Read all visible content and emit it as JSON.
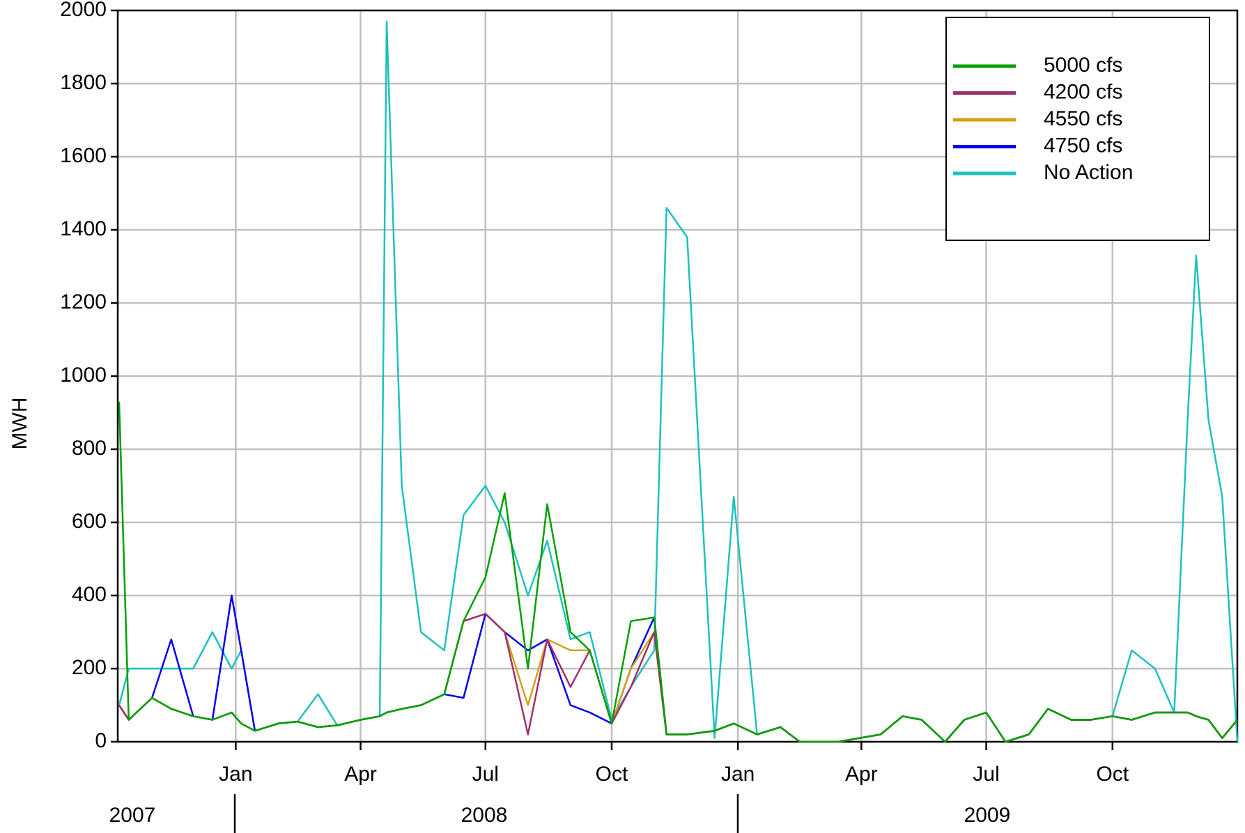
{
  "chart_data": {
    "type": "line",
    "y_label": "MWH",
    "x": [
      "2007-10-08",
      "2007-10-15",
      "2007-11-01",
      "2007-11-15",
      "2007-12-01",
      "2007-12-15",
      "2007-12-29",
      "2008-01-05",
      "2008-01-15",
      "2008-02-01",
      "2008-02-15",
      "2008-03-01",
      "2008-03-15",
      "2008-04-01",
      "2008-04-15",
      "2008-04-20",
      "2008-05-01",
      "2008-05-15",
      "2008-06-01",
      "2008-06-15",
      "2008-07-01",
      "2008-07-15",
      "2008-08-01",
      "2008-08-15",
      "2008-09-01",
      "2008-09-15",
      "2008-10-01",
      "2008-10-15",
      "2008-11-01",
      "2008-11-10",
      "2008-11-25",
      "2008-12-15",
      "2008-12-29",
      "2009-01-15",
      "2009-02-01",
      "2009-02-15",
      "2009-03-15",
      "2009-04-15",
      "2009-05-01",
      "2009-05-15",
      "2009-06-01",
      "2009-06-15",
      "2009-07-01",
      "2009-07-15",
      "2009-08-01",
      "2009-08-15",
      "2009-09-01",
      "2009-09-15",
      "2009-10-01",
      "2009-10-15",
      "2009-11-01",
      "2009-11-15",
      "2009-11-25",
      "2009-12-01",
      "2009-12-10",
      "2009-12-20",
      "2009-12-31"
    ],
    "series": [
      {
        "name": "No Action",
        "color": "#20c0c0",
        "values": [
          100,
          200,
          200,
          200,
          200,
          300,
          200,
          250,
          30,
          50,
          55,
          130,
          45,
          60,
          70,
          1970,
          700,
          300,
          250,
          620,
          700,
          600,
          400,
          550,
          280,
          300,
          60,
          150,
          250,
          1460,
          1380,
          10,
          670,
          20,
          40,
          0,
          0,
          20,
          70,
          60,
          0,
          60,
          80,
          0,
          20,
          90,
          60,
          60,
          70,
          250,
          200,
          80,
          900,
          1330,
          880,
          670,
          0
        ]
      },
      {
        "name": "4750 cfs",
        "color": "#0000ee",
        "values": [
          100,
          60,
          120,
          280,
          70,
          60,
          400,
          250,
          30,
          50,
          55,
          40,
          45,
          60,
          70,
          80,
          90,
          100,
          130,
          120,
          350,
          300,
          250,
          280,
          100,
          80,
          50,
          200,
          340,
          20,
          20,
          30,
          50,
          20,
          40,
          0,
          0,
          20,
          70,
          60,
          0,
          60,
          80,
          0,
          20,
          90,
          60,
          60,
          70,
          60,
          80,
          80,
          80,
          70,
          60,
          10,
          60
        ]
      },
      {
        "name": "4550 cfs",
        "color": "#d4a017",
        "values": [
          100,
          60,
          120,
          90,
          70,
          60,
          80,
          50,
          30,
          50,
          55,
          40,
          45,
          60,
          70,
          80,
          90,
          100,
          130,
          330,
          350,
          300,
          100,
          280,
          250,
          250,
          50,
          200,
          300,
          20,
          20,
          30,
          50,
          20,
          40,
          0,
          0,
          20,
          70,
          60,
          0,
          60,
          80,
          0,
          20,
          90,
          60,
          60,
          70,
          60,
          80,
          80,
          80,
          70,
          60,
          10,
          60
        ]
      },
      {
        "name": "4200 cfs",
        "color": "#a0306a",
        "values": [
          100,
          60,
          120,
          90,
          70,
          60,
          80,
          50,
          30,
          50,
          55,
          40,
          45,
          60,
          70,
          80,
          90,
          100,
          130,
          330,
          350,
          300,
          20,
          280,
          150,
          250,
          50,
          150,
          300,
          20,
          20,
          30,
          50,
          20,
          40,
          0,
          0,
          20,
          70,
          60,
          0,
          60,
          80,
          0,
          20,
          90,
          60,
          60,
          70,
          60,
          80,
          80,
          80,
          70,
          60,
          10,
          60
        ]
      },
      {
        "name": "5000 cfs",
        "color": "#00a000",
        "values": [
          930,
          60,
          120,
          90,
          70,
          60,
          80,
          50,
          30,
          50,
          55,
          40,
          45,
          60,
          70,
          80,
          90,
          100,
          130,
          330,
          450,
          680,
          200,
          650,
          300,
          250,
          50,
          330,
          340,
          20,
          20,
          30,
          50,
          20,
          40,
          0,
          0,
          20,
          70,
          60,
          0,
          60,
          80,
          0,
          20,
          90,
          60,
          60,
          70,
          60,
          80,
          80,
          80,
          70,
          60,
          10,
          60
        ]
      }
    ],
    "xlim": [
      "2007-10-07",
      "2009-12-31"
    ],
    "xticks": [
      {
        "value": "2008-01-01",
        "label": "Jan"
      },
      {
        "value": "2008-04-01",
        "label": "Apr"
      },
      {
        "value": "2008-07-01",
        "label": "Jul"
      },
      {
        "value": "2008-10-01",
        "label": "Oct"
      },
      {
        "value": "2009-01-01",
        "label": "Jan"
      },
      {
        "value": "2009-04-01",
        "label": "Apr"
      },
      {
        "value": "2009-07-01",
        "label": "Jul"
      },
      {
        "value": "2009-10-01",
        "label": "Oct"
      }
    ],
    "year_labels": [
      "2007",
      "2008",
      "2009"
    ],
    "ylim": [
      0,
      2000
    ],
    "yticks": [
      0,
      200,
      400,
      600,
      800,
      1000,
      1200,
      1400,
      1600,
      1800,
      2000
    ],
    "grid": true,
    "legend": "upper right"
  }
}
